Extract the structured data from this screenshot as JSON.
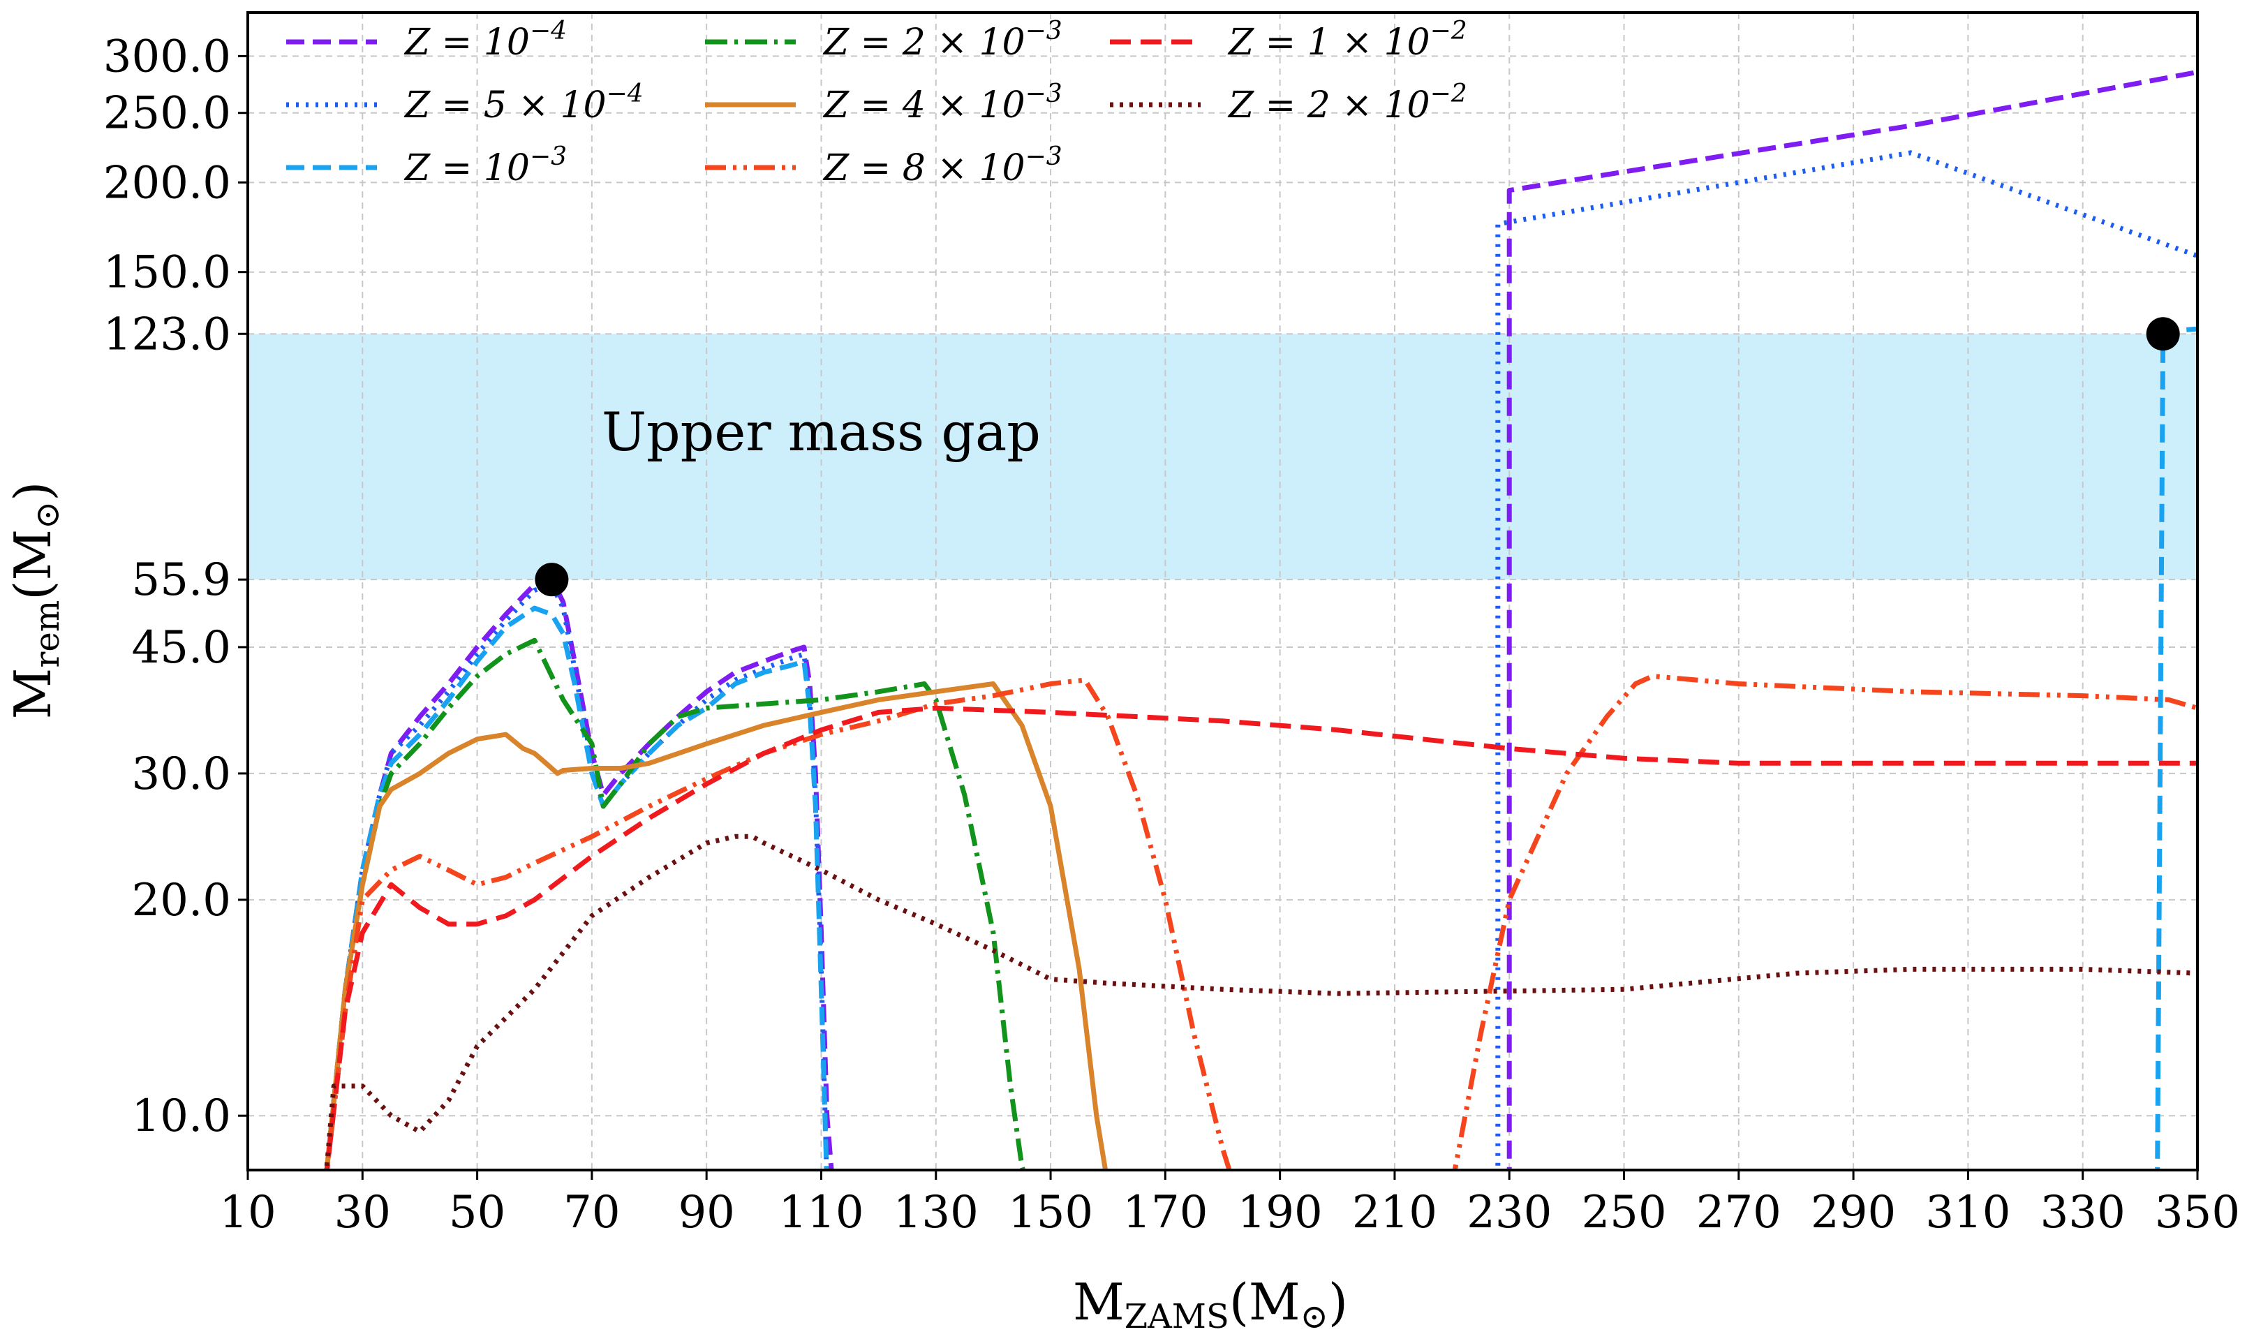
{
  "chart_data": {
    "type": "line",
    "title": "",
    "xlabel": "M_ZAMS(M_sun)",
    "ylabel": "M_rem(M_sun)",
    "xlabel_parts": {
      "base": "M",
      "sub": "ZAMS",
      "unit": "(M",
      "unit_sub": "⊙",
      "close": ")"
    },
    "ylabel_parts": {
      "base": "M",
      "sub": "rem",
      "unit": "(M",
      "unit_sub": "⊙",
      "close": ")"
    },
    "xlim": [
      10,
      350
    ],
    "ylim": [
      8.4,
      345
    ],
    "yscale": "log",
    "xticks": [
      "10",
      "30",
      "50",
      "70",
      "90",
      "110",
      "130",
      "150",
      "170",
      "190",
      "210",
      "230",
      "250",
      "270",
      "290",
      "310",
      "330",
      "350"
    ],
    "yticks": [
      {
        "value": 10,
        "label": "10.0"
      },
      {
        "value": 20,
        "label": "20.0"
      },
      {
        "value": 30,
        "label": "30.0"
      },
      {
        "value": 45,
        "label": "45.0"
      },
      {
        "value": 55.9,
        "label": "55.9"
      },
      {
        "value": 123,
        "label": "123.0"
      },
      {
        "value": 150,
        "label": "150.0"
      },
      {
        "value": 200,
        "label": "200.0"
      },
      {
        "value": 250,
        "label": "250.0"
      },
      {
        "value": 300,
        "label": "300.0"
      }
    ],
    "grid": true,
    "legend_position": "top-left",
    "band": {
      "label": "Upper mass gap",
      "from": 55.9,
      "to": 123.0,
      "color": "#cdeefb"
    },
    "markers": [
      {
        "x": 63,
        "y": 55.9
      },
      {
        "x": 344,
        "y": 123
      }
    ],
    "series": [
      {
        "name": "Z=10^-4",
        "label": {
          "pre": "Z = 10",
          "sup": "−4"
        },
        "color": "#7f1cf2",
        "dash": "26 12",
        "width": 7,
        "x": [
          23.5,
          27,
          30,
          33,
          35,
          40,
          45,
          50,
          55,
          60,
          63,
          65,
          67,
          70,
          72,
          75,
          80,
          85,
          90,
          95,
          100,
          105,
          107,
          108,
          109,
          110,
          111,
          112
        ],
        "y": [
          8,
          15,
          22,
          28,
          32,
          36,
          40,
          45,
          50,
          55,
          56,
          52,
          43,
          32,
          28,
          30,
          33,
          36,
          39,
          41.5,
          43,
          44.5,
          45,
          40,
          30,
          18,
          10,
          8
        ],
        "x2": [
          230,
          230,
          230,
          300,
          350
        ],
        "y2": [
          8,
          150,
          195,
          240,
          285
        ]
      },
      {
        "name": "Z=5×10^-4",
        "label": {
          "pre": "Z = 5 × 10",
          "sup": "−4"
        },
        "color": "#1c5cf2",
        "dash": "4 10",
        "width": 7,
        "x": [
          23.5,
          27,
          30,
          33,
          35,
          40,
          45,
          50,
          55,
          60,
          63,
          65,
          67,
          70,
          72,
          75,
          80,
          85,
          90,
          95,
          100,
          105,
          107,
          108,
          109,
          110,
          111
        ],
        "y": [
          8,
          15,
          22,
          28,
          32,
          35,
          39,
          44,
          49,
          54,
          55,
          51,
          42,
          31,
          27,
          29,
          32,
          35,
          38,
          40.5,
          42,
          43.5,
          44,
          38,
          28,
          16,
          8
        ],
        "x2": [
          228,
          228,
          228,
          300,
          350
        ],
        "y2": [
          8,
          150,
          175,
          220,
          158
        ]
      },
      {
        "name": "Z=10^-3",
        "label": {
          "pre": "Z = 10",
          "sup": "−3"
        },
        "color": "#18a2f0",
        "dash": "26 12",
        "width": 7,
        "x": [
          23.5,
          27,
          30,
          33,
          35,
          40,
          45,
          50,
          55,
          60,
          63,
          65,
          67,
          70,
          72,
          75,
          80,
          85,
          90,
          95,
          100,
          105,
          107,
          108,
          109,
          110,
          111
        ],
        "y": [
          8,
          15,
          22,
          28,
          31,
          34,
          38,
          43,
          48,
          51,
          50,
          47,
          40,
          30,
          27,
          29,
          32,
          35,
          37,
          40,
          41.5,
          42.5,
          43,
          37,
          27,
          15,
          8
        ],
        "x2": [
          343,
          344,
          345,
          350
        ],
        "y2": [
          8,
          123,
          124,
          125
        ]
      },
      {
        "name": "Z=2×10^-3",
        "label": {
          "pre": "Z = 2 × 10",
          "sup": "−3"
        },
        "color": "#11931c",
        "dash": "32 10 5 10",
        "width": 7,
        "x": [
          23.5,
          27,
          30,
          33,
          35,
          40,
          45,
          50,
          55,
          60,
          65,
          70,
          72,
          75,
          80,
          85,
          90,
          100,
          110,
          120,
          128,
          130,
          135,
          140,
          143,
          145,
          146
        ],
        "y": [
          8,
          15,
          21,
          27,
          30,
          33,
          37,
          41,
          44,
          46,
          38,
          33,
          27,
          29,
          33,
          36,
          37,
          37.5,
          38,
          39,
          40,
          38,
          28,
          18,
          11,
          8.5,
          8
        ],
        "x2": [],
        "y2": []
      },
      {
        "name": "Z=4×10^-3",
        "label": {
          "pre": "Z = 4 × 10",
          "sup": "−3"
        },
        "color": "#d9832a",
        "dash": "",
        "width": 7,
        "x": [
          23.5,
          27,
          30,
          33,
          35,
          40,
          45,
          50,
          55,
          58,
          60,
          62,
          64,
          65,
          70,
          75,
          80,
          90,
          100,
          110,
          120,
          130,
          140,
          145,
          150,
          155,
          158,
          160
        ],
        "y": [
          8,
          15,
          21,
          27,
          28.5,
          30,
          32,
          33.5,
          34,
          32.5,
          32,
          31,
          30,
          30.3,
          30.5,
          30.5,
          31,
          33,
          35,
          36.5,
          38,
          39,
          40,
          35,
          27,
          16,
          10,
          8
        ],
        "x2": [],
        "y2": []
      },
      {
        "name": "Z=8×10^-3",
        "label": {
          "pre": "Z = 8 × 10",
          "sup": "−3"
        },
        "color": "#f5451d",
        "dash": "30 10 5 10 5 10",
        "width": 7,
        "x": [
          23.5,
          27,
          30,
          35,
          40,
          45,
          50,
          55,
          60,
          70,
          80,
          90,
          100,
          110,
          120,
          130,
          140,
          150,
          156,
          160,
          165,
          170,
          175,
          180,
          182
        ],
        "y": [
          8,
          14,
          20,
          22,
          23,
          22,
          21,
          21.5,
          22.5,
          24.5,
          27,
          29.5,
          32,
          34,
          35.5,
          37.5,
          38.5,
          40,
          40.5,
          36,
          28,
          20,
          13,
          9,
          8
        ],
        "x2": [
          220,
          225,
          230,
          240,
          247,
          252,
          255,
          270,
          300,
          330,
          345,
          350
        ],
        "y2": [
          8,
          13,
          20,
          30,
          36,
          40,
          41,
          40,
          39,
          38.5,
          38,
          37
        ]
      },
      {
        "name": "Z=1×10^-2",
        "label": {
          "pre": "Z = 1 × 10",
          "sup": "−2"
        },
        "color": "#f0191e",
        "dash": "30 14",
        "width": 7,
        "x": [
          23.5,
          27,
          30,
          35,
          40,
          45,
          50,
          55,
          60,
          70,
          80,
          90,
          100,
          110,
          120,
          130,
          150,
          180,
          200,
          230,
          250,
          270,
          300,
          330,
          350
        ],
        "y": [
          8,
          14,
          18,
          21,
          19.5,
          18.5,
          18.5,
          19,
          20,
          23,
          26,
          29,
          32,
          34.5,
          36.5,
          37,
          36.5,
          35.5,
          34.5,
          32.5,
          31.5,
          31,
          31,
          31,
          31
        ],
        "x2": [],
        "y2": []
      },
      {
        "name": "Z=2×10^-2",
        "label": {
          "pre": "Z = 2 × 10",
          "sup": "−2"
        },
        "color": "#6b1010",
        "dash": "5 9",
        "width": 7,
        "x": [
          23.5,
          25,
          30,
          35,
          40,
          45,
          50,
          60,
          70,
          80,
          90,
          95,
          98,
          100,
          110,
          120,
          130,
          140,
          150,
          160,
          180,
          200,
          250,
          280,
          300,
          330,
          350
        ],
        "y": [
          8,
          11,
          11,
          10,
          9.5,
          10.5,
          12.5,
          15,
          19,
          21.5,
          24,
          24.5,
          24.5,
          24,
          22,
          20,
          18.5,
          17,
          15.5,
          15.3,
          15,
          14.8,
          15,
          15.8,
          16,
          16,
          15.8
        ],
        "x2": [],
        "y2": []
      }
    ]
  }
}
